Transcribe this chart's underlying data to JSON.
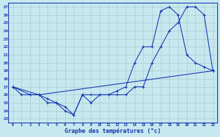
{
  "xlabel": "Graphe des températures (°c)",
  "background_color": "#c8e8f0",
  "grid_color": "#aacccc",
  "line_color": "#1535b0",
  "xlim": [
    -0.5,
    23.5
  ],
  "ylim": [
    12.5,
    27.5
  ],
  "yticks": [
    13,
    14,
    15,
    16,
    17,
    18,
    19,
    20,
    21,
    22,
    23,
    24,
    25,
    26,
    27
  ],
  "xticks": [
    0,
    1,
    2,
    3,
    4,
    5,
    6,
    7,
    8,
    9,
    10,
    11,
    12,
    13,
    14,
    15,
    16,
    17,
    18,
    19,
    20,
    21,
    22,
    23
  ],
  "line1_x": [
    0,
    1,
    2,
    3,
    4,
    5,
    6,
    7,
    8,
    9,
    10,
    11,
    12,
    13,
    14,
    15,
    16,
    17,
    18,
    19,
    20,
    21,
    22,
    23
  ],
  "line1_y": [
    17,
    16,
    16,
    16,
    15.5,
    15,
    14,
    13.5,
    16,
    16,
    16,
    16,
    16,
    16,
    17,
    17,
    20,
    22,
    24,
    25,
    27,
    27,
    26,
    19
  ],
  "line2_x": [
    0,
    2,
    3,
    4,
    5,
    6,
    7,
    8,
    9,
    10,
    11,
    12,
    13,
    14,
    15,
    16,
    17,
    18,
    19,
    20,
    21,
    22,
    23
  ],
  "line2_y": [
    17,
    16,
    16,
    15,
    15,
    14.5,
    13.5,
    16,
    15,
    16,
    16,
    16.5,
    17,
    20,
    22,
    22,
    26.5,
    27,
    26,
    21,
    20,
    19.5,
    19
  ],
  "line3_x": [
    0,
    3,
    23
  ],
  "line3_y": [
    17,
    16,
    19
  ]
}
